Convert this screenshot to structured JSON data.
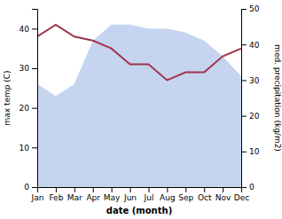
{
  "chart_data": {
    "type": "line",
    "categories": [
      "Jan",
      "Feb",
      "Mar",
      "Apr",
      "May",
      "Jun",
      "Jul",
      "Aug",
      "Sep",
      "Oct",
      "Nov",
      "Dec"
    ],
    "series": [
      {
        "type": "area",
        "color": "#c5d5f0",
        "values": [
          26,
          23,
          26,
          37,
          41,
          41,
          40,
          40,
          39,
          37,
          33,
          28
        ]
      },
      {
        "type": "line",
        "color": "#a0354a",
        "values": [
          38,
          41,
          38,
          37,
          35,
          31,
          31,
          27,
          29,
          29,
          33,
          35
        ]
      }
    ],
    "xlabel": "date (month)",
    "ylabel": "max temp (C)",
    "y2label": "med. precipitation (kg/m2)",
    "ylim": [
      0,
      45
    ],
    "yticks": [
      0,
      10,
      20,
      30,
      40
    ],
    "y2lim": [
      0,
      50
    ],
    "y2ticks": [
      0,
      10,
      20,
      30,
      40,
      50
    ],
    "grid": false
  }
}
